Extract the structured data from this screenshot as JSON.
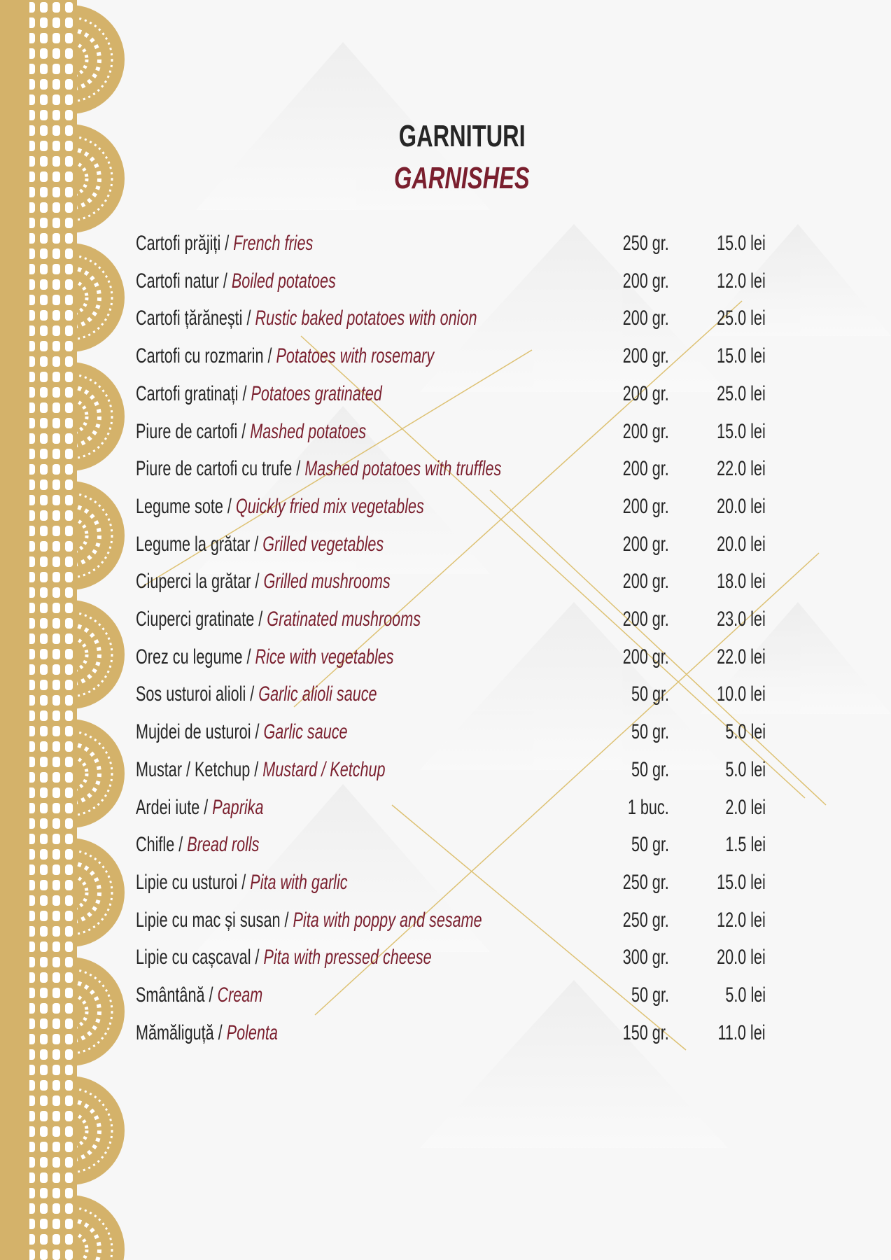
{
  "heading": {
    "ro": "GARNITURI",
    "en": "GARNISHES"
  },
  "colors": {
    "gold": "#d4b26a",
    "maroon": "#7a1f2e",
    "text": "#262626"
  },
  "items": [
    {
      "ro": "Cartofi prăjiți  / ",
      "en": "French fries",
      "weight": "250 gr.",
      "price": "15.0 lei"
    },
    {
      "ro": "Cartofi natur / ",
      "en": "Boiled potatoes",
      "weight": "200 gr.",
      "price": "12.0 lei"
    },
    {
      "ro": "Cartofi țărănești / ",
      "en": "Rustic baked potatoes with onion",
      "weight": "200 gr.",
      "price": "25.0 lei"
    },
    {
      "ro": "Cartofi cu rozmarin / ",
      "en": "Potatoes with rosemary",
      "weight": "200 gr.",
      "price": "15.0 lei"
    },
    {
      "ro": "Cartofi gratinați / ",
      "en": "Potatoes gratinated",
      "weight": "200 gr.",
      "price": "25.0 lei"
    },
    {
      "ro": "Piure de cartofi / ",
      "en": "Mashed potatoes",
      "weight": "200 gr.",
      "price": "15.0 lei"
    },
    {
      "ro": "Piure de cartofi cu trufe / ",
      "en": "Mashed potatoes with truffles",
      "weight": "200 gr.",
      "price": "22.0 lei"
    },
    {
      "ro": "Legume sote / ",
      "en": "Quickly fried mix vegetables",
      "weight": "200 gr.",
      "price": "20.0 lei"
    },
    {
      "ro": "Legume la grătar / ",
      "en": "Grilled vegetables",
      "weight": "200 gr.",
      "price": "20.0 lei"
    },
    {
      "ro": "Ciuperci la grătar / ",
      "en": "Grilled mushrooms",
      "weight": "200 gr.",
      "price": "18.0 lei"
    },
    {
      "ro": "Ciuperci gratinate / ",
      "en": "Gratinated mushrooms",
      "weight": "200 gr.",
      "price": "23.0 lei"
    },
    {
      "ro": "Orez cu legume / ",
      "en": "Rice with vegetables",
      "weight": "200 gr.",
      "price": "22.0 lei"
    },
    {
      "ro": "Sos usturoi alioli / ",
      "en": "Garlic alioli sauce",
      "weight": "50 gr.",
      "price": "10.0 lei"
    },
    {
      "ro": "Mujdei de usturoi / ",
      "en": "Garlic sauce",
      "weight": "50 gr.",
      "price": "5.0 lei"
    },
    {
      "ro": "Mustar / Ketchup / ",
      "en": "Mustard  / Ketchup",
      "weight": "50 gr.",
      "price": "5.0 lei"
    },
    {
      "ro": "Ardei iute / ",
      "en": "Paprika",
      "weight": "1 buc.",
      "price": "2.0 lei"
    },
    {
      "ro": "Chifle / ",
      "en": "Bread rolls",
      "weight": "50 gr.",
      "price": "1.5 lei"
    },
    {
      "ro": "Lipie cu usturoi / ",
      "en": "Pita with garlic",
      "weight": "250 gr.",
      "price": "15.0 lei"
    },
    {
      "ro": "Lipie cu mac și susan / ",
      "en": "Pita with poppy and sesame",
      "weight": "250 gr.",
      "price": "12.0 lei"
    },
    {
      "ro": "Lipie cu cașcaval / ",
      "en": "Pita with pressed cheese",
      "weight": "300 gr.",
      "price": "20.0 lei"
    },
    {
      "ro": "Smântână / ",
      "en": "Cream",
      "weight": "50 gr.",
      "price": "5.0 lei"
    },
    {
      "ro": "Mămăliguță / ",
      "en": "Polenta",
      "weight": "150 gr.",
      "price": "11.0 lei"
    }
  ]
}
